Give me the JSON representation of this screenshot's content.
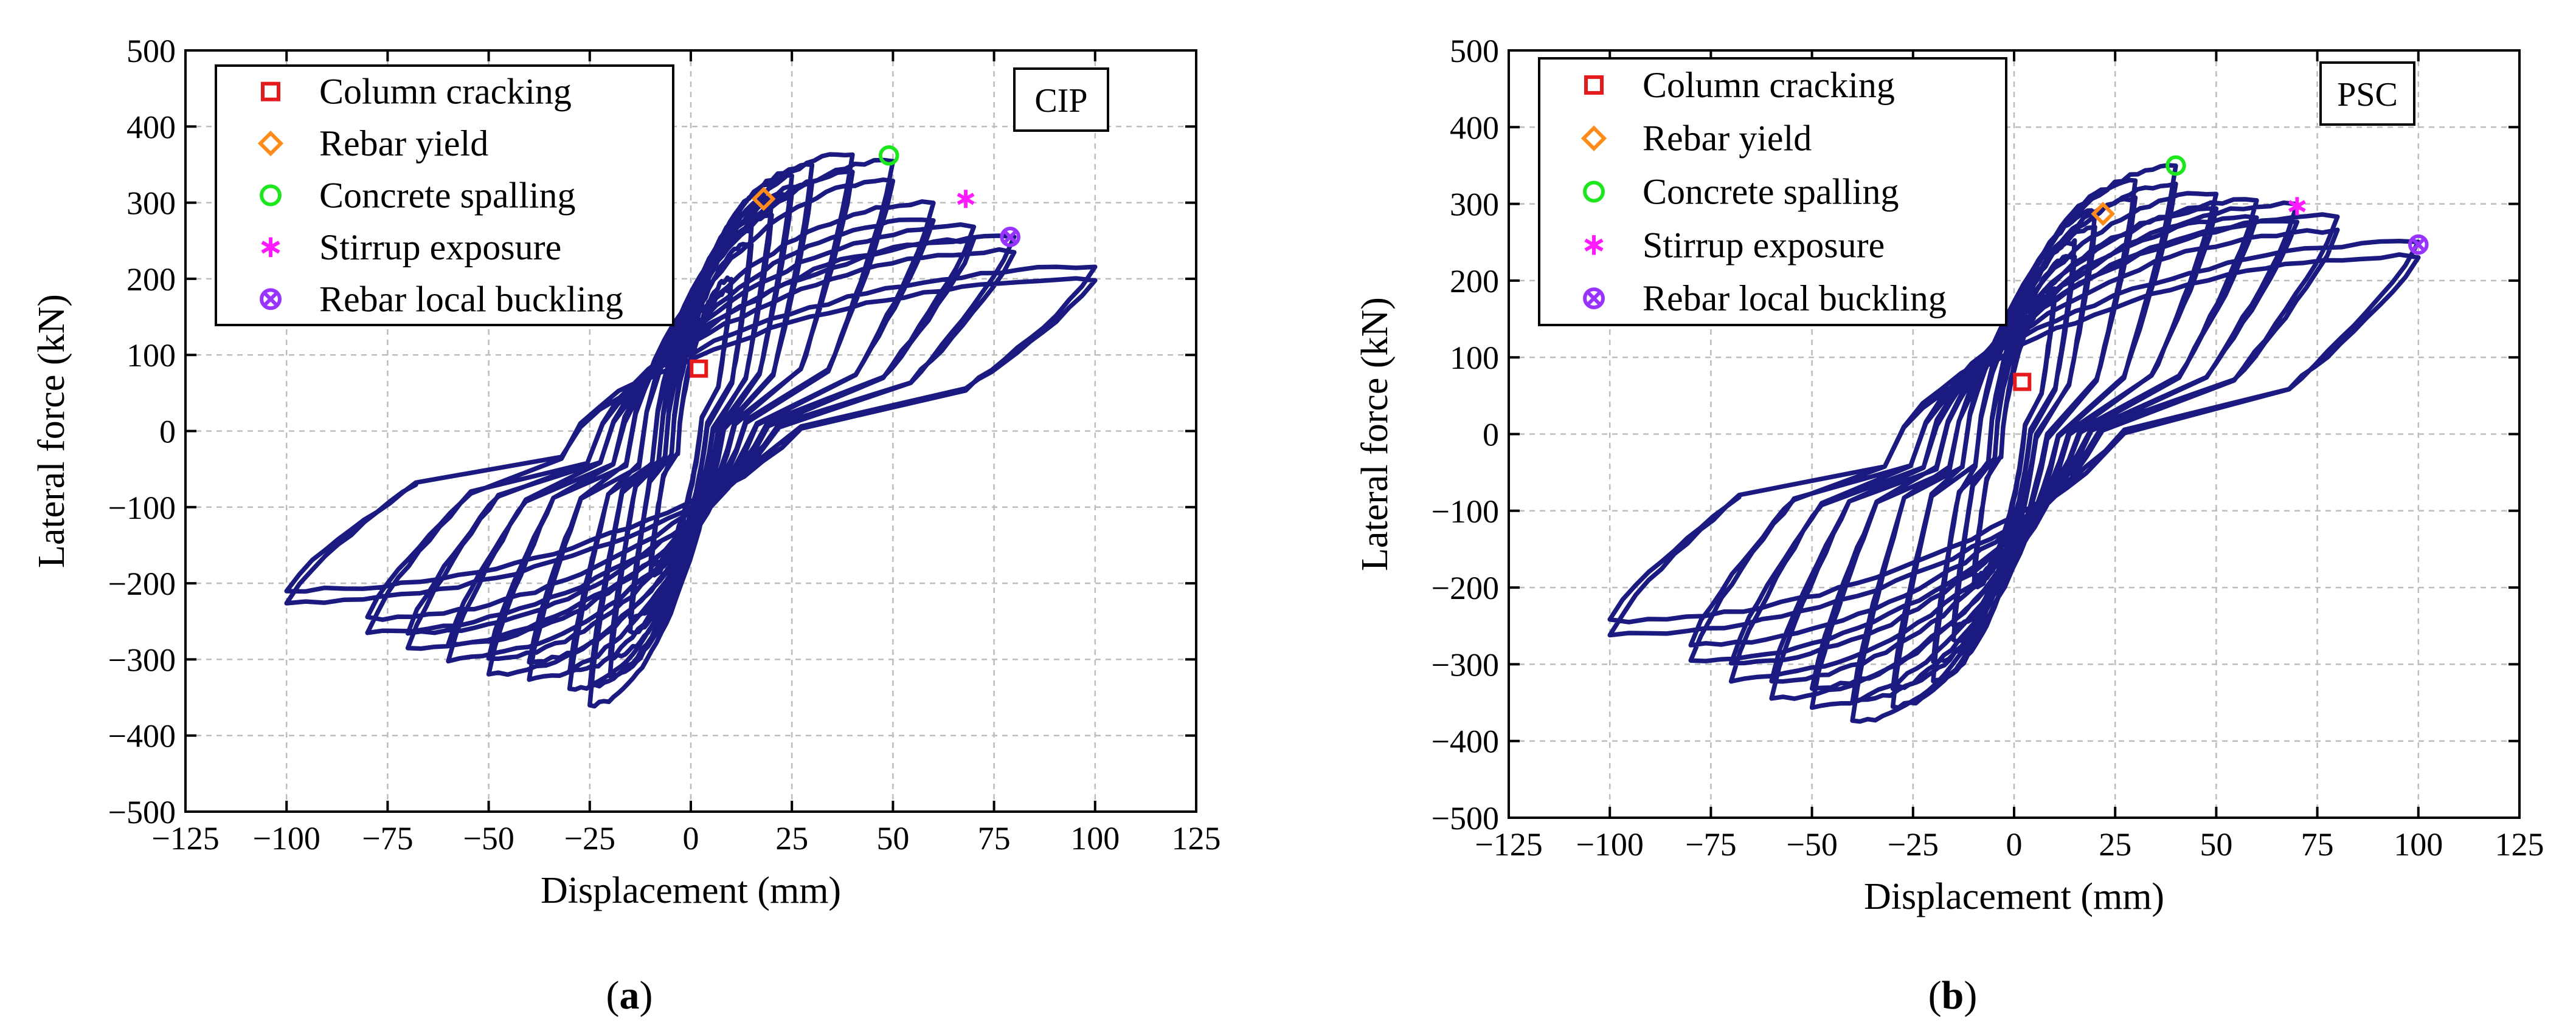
{
  "chart_data": [
    {
      "type": "line",
      "panel_label": "a",
      "badge": "CIP",
      "xlabel": "Displacement (mm)",
      "ylabel": "Lateral force (kN)",
      "xlim": [
        -125,
        125
      ],
      "ylim": [
        -500,
        500
      ],
      "xticks": [
        -125,
        -100,
        -75,
        -50,
        -25,
        0,
        25,
        50,
        75,
        100,
        125
      ],
      "yticks": [
        -500,
        -400,
        -300,
        -200,
        -100,
        0,
        100,
        200,
        300,
        400,
        500
      ],
      "grid": true,
      "legend_position": "top-left",
      "cycles": [
        {
          "d": 10,
          "fp": 200,
          "fn": -190,
          "hp": 60,
          "hn": -60
        },
        {
          "d": 15,
          "fp": 265,
          "fn": -265,
          "hp": 65,
          "hn": -65
        },
        {
          "d": 20,
          "fp": 305,
          "fn": -320,
          "hp": 70,
          "hn": -70
        },
        {
          "d": 25,
          "fp": 335,
          "fn": -360,
          "hp": 75,
          "hn": -80
        },
        {
          "d": 30,
          "fp": 350,
          "fn": -340,
          "hp": 75,
          "hn": -85
        },
        {
          "d": 40,
          "fp": 365,
          "fn": -325,
          "hp": 80,
          "hn": -90
        },
        {
          "d": 50,
          "fp": 355,
          "fn": -320,
          "hp": 80,
          "hn": -90
        },
        {
          "d": 60,
          "fp": 300,
          "fn": -300,
          "hp": 75,
          "hn": -90
        },
        {
          "d": 70,
          "fp": 270,
          "fn": -285,
          "hp": 70,
          "hn": -85
        },
        {
          "d": 80,
          "fp": 255,
          "fn": -265,
          "hp": 65,
          "hn": -80
        },
        {
          "d": 100,
          "fp": 215,
          "fn": -225,
          "hp": 55,
          "hn": -70
        }
      ],
      "events": [
        {
          "label": "Column cracking",
          "x": 2,
          "y": 82,
          "marker": "square",
          "color": "#e41a1c"
        },
        {
          "label": "Rebar yield",
          "x": 18,
          "y": 305,
          "marker": "diamond",
          "color": "#ff8c1a"
        },
        {
          "label": "Concrete spalling",
          "x": 49,
          "y": 362,
          "marker": "circle",
          "color": "#1ee61e"
        },
        {
          "label": "Stirrup exposure",
          "x": 68,
          "y": 305,
          "marker": "asterisk",
          "color": "#ff1aff"
        },
        {
          "label": "Rebar local buckling",
          "x": 79,
          "y": 255,
          "marker": "crossed-circle",
          "color": "#9933ff"
        }
      ]
    },
    {
      "type": "line",
      "panel_label": "b",
      "badge": "PSC",
      "xlabel": "Displacement (mm)",
      "ylabel": "Lateral force (kN)",
      "xlim": [
        -125,
        125
      ],
      "ylim": [
        -500,
        500
      ],
      "xticks": [
        -125,
        -100,
        -75,
        -50,
        -25,
        0,
        25,
        50,
        75,
        100,
        125
      ],
      "yticks": [
        -500,
        -400,
        -300,
        -200,
        -100,
        0,
        100,
        200,
        300,
        400,
        500
      ],
      "grid": true,
      "legend_position": "top-left",
      "cycles": [
        {
          "d": 10,
          "fp": 190,
          "fn": -200,
          "hp": 55,
          "hn": -60
        },
        {
          "d": 15,
          "fp": 250,
          "fn": -270,
          "hp": 60,
          "hn": -65
        },
        {
          "d": 20,
          "fp": 290,
          "fn": -320,
          "hp": 65,
          "hn": -75
        },
        {
          "d": 30,
          "fp": 330,
          "fn": -355,
          "hp": 70,
          "hn": -80
        },
        {
          "d": 40,
          "fp": 350,
          "fn": -375,
          "hp": 75,
          "hn": -85
        },
        {
          "d": 50,
          "fp": 315,
          "fn": -355,
          "hp": 75,
          "hn": -90
        },
        {
          "d": 60,
          "fp": 305,
          "fn": -345,
          "hp": 75,
          "hn": -90
        },
        {
          "d": 70,
          "fp": 300,
          "fn": -320,
          "hp": 75,
          "hn": -90
        },
        {
          "d": 80,
          "fp": 285,
          "fn": -295,
          "hp": 70,
          "hn": -85
        },
        {
          "d": 100,
          "fp": 250,
          "fn": -262,
          "hp": 60,
          "hn": -80
        }
      ],
      "events": [
        {
          "label": "Column cracking",
          "x": 2,
          "y": 68,
          "marker": "square",
          "color": "#e41a1c"
        },
        {
          "label": "Rebar yield",
          "x": 22,
          "y": 287,
          "marker": "diamond",
          "color": "#ff8c1a"
        },
        {
          "label": "Concrete spalling",
          "x": 40,
          "y": 350,
          "marker": "circle",
          "color": "#1ee61e"
        },
        {
          "label": "Stirrup exposure",
          "x": 70,
          "y": 297,
          "marker": "asterisk",
          "color": "#ff1aff"
        },
        {
          "label": "Rebar local buckling",
          "x": 100,
          "y": 247,
          "marker": "crossed-circle",
          "color": "#9933ff"
        }
      ]
    }
  ]
}
